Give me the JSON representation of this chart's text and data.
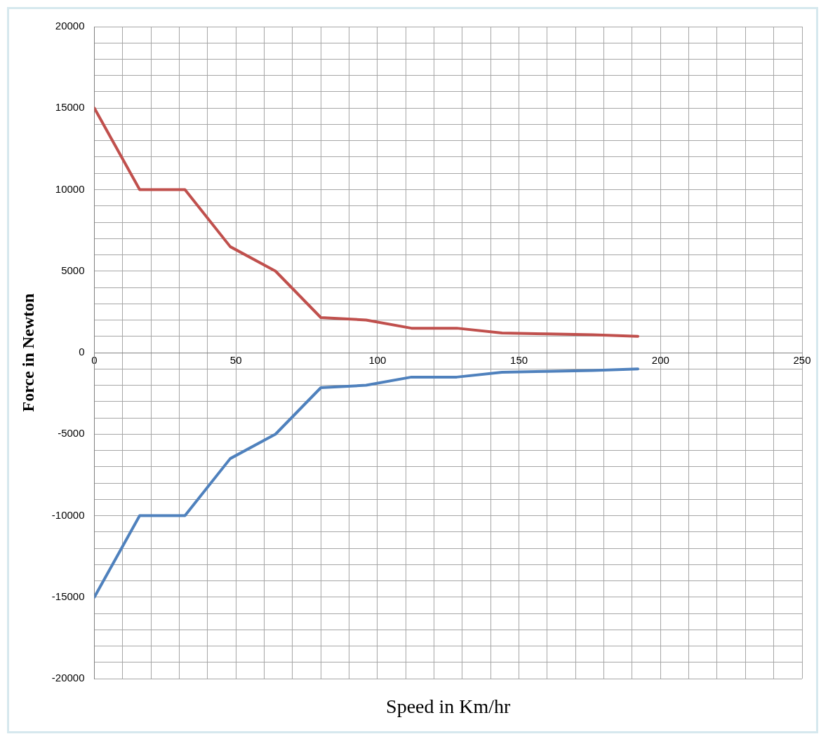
{
  "chart_data": {
    "type": "line",
    "xlabel": "Speed in Km/hr",
    "ylabel": "Force in Newton",
    "x": [
      0,
      16,
      32,
      48,
      64,
      80,
      96,
      112,
      128,
      144,
      160,
      176,
      192
    ],
    "series": [
      {
        "color": "#c0504d",
        "values": [
          15000,
          10000,
          10000,
          6500,
          5000,
          2150,
          2000,
          1500,
          1500,
          1200,
          1150,
          1100,
          1000
        ]
      },
      {
        "color": "#4f81bd",
        "values": [
          -15000,
          -10000,
          -10000,
          -6500,
          -5000,
          -2150,
          -2000,
          -1500,
          -1500,
          -1200,
          -1150,
          -1100,
          -1000
        ]
      }
    ],
    "xlim": [
      0,
      250
    ],
    "xticks": [
      0,
      {
        "value": 10,
        "label": null
      },
      {
        "value": 20,
        "label": null
      },
      {
        "value": 30,
        "label": null
      },
      {
        "value": 40,
        "label": null
      },
      50,
      {
        "value": 60,
        "label": null
      },
      {
        "value": 70,
        "label": null
      },
      {
        "value": 80,
        "label": null
      },
      {
        "value": 90,
        "label": null
      },
      100,
      {
        "value": 110,
        "label": null
      },
      {
        "value": 120,
        "label": null
      },
      {
        "value": 130,
        "label": null
      },
      {
        "value": 140,
        "label": null
      },
      150,
      {
        "value": 160,
        "label": null
      },
      {
        "value": 170,
        "label": null
      },
      {
        "value": 180,
        "label": null
      },
      {
        "value": 190,
        "label": null
      },
      200,
      {
        "value": 210,
        "label": null
      },
      {
        "value": 220,
        "label": null
      },
      {
        "value": 230,
        "label": null
      },
      {
        "value": 240,
        "label": null
      },
      250
    ],
    "ylim": [
      -20000,
      20000
    ],
    "yticks": [
      -20000,
      {
        "value": -19000,
        "label": null
      },
      {
        "value": -18000,
        "label": null
      },
      {
        "value": -17000,
        "label": null
      },
      {
        "value": -16000,
        "label": null
      },
      -15000,
      {
        "value": -14000,
        "label": null
      },
      {
        "value": -13000,
        "label": null
      },
      {
        "value": -12000,
        "label": null
      },
      {
        "value": -11000,
        "label": null
      },
      -10000,
      {
        "value": -9000,
        "label": null
      },
      {
        "value": -8000,
        "label": null
      },
      {
        "value": -7000,
        "label": null
      },
      {
        "value": -6000,
        "label": null
      },
      -5000,
      {
        "value": -4000,
        "label": null
      },
      {
        "value": -3000,
        "label": null
      },
      {
        "value": -2000,
        "label": null
      },
      {
        "value": -1000,
        "label": null
      },
      0,
      {
        "value": 1000,
        "label": null
      },
      {
        "value": 2000,
        "label": null
      },
      {
        "value": 3000,
        "label": null
      },
      {
        "value": 4000,
        "label": null
      },
      5000,
      {
        "value": 6000,
        "label": null
      },
      {
        "value": 7000,
        "label": null
      },
      {
        "value": 8000,
        "label": null
      },
      {
        "value": 9000,
        "label": null
      },
      10000,
      {
        "value": 11000,
        "label": null
      },
      {
        "value": 12000,
        "label": null
      },
      {
        "value": 13000,
        "label": null
      },
      {
        "value": 14000,
        "label": null
      },
      15000,
      {
        "value": 16000,
        "label": null
      },
      {
        "value": 17000,
        "label": null
      },
      {
        "value": 18000,
        "label": null
      },
      {
        "value": 19000,
        "label": null
      },
      20000
    ],
    "grid": true,
    "legend": false,
    "marker": "none",
    "line_style": "solid"
  }
}
